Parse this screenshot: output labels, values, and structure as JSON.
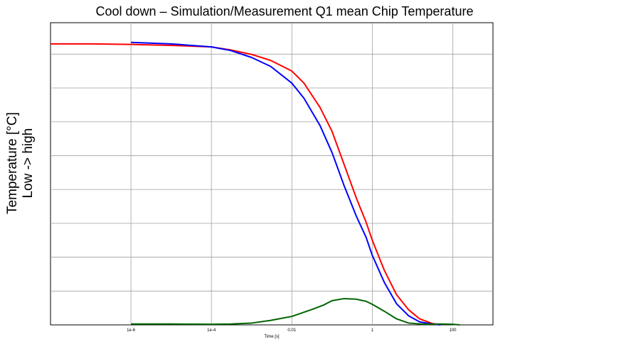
{
  "chart_data": {
    "type": "line",
    "title": "Cool down – Simulation/Measurement Q1 mean Chip Temperature",
    "xlabel": "Time [s]",
    "ylabel": [
      "Temperature [°C]",
      "Low -> high"
    ],
    "x_scale": "log",
    "xlim": [
      1e-08,
      1000
    ],
    "ylim": [
      0,
      1
    ],
    "x_ticks": [
      {
        "value": 1e-06,
        "label": "1e-6"
      },
      {
        "value": 0.0001,
        "label": "1e-4"
      },
      {
        "value": 0.01,
        "label": "0.01"
      },
      {
        "value": 1,
        "label": "1"
      },
      {
        "value": 100,
        "label": "100"
      }
    ],
    "y_gridlines": [
      0.112,
      0.224,
      0.336,
      0.448,
      0.56,
      0.672,
      0.784,
      0.896
    ],
    "y_tick_labels": "none",
    "grid": true,
    "legend": "none",
    "series": [
      {
        "color": "#ff0000",
        "x": [
          1e-08,
          1e-07,
          1e-06,
          1e-05,
          0.0001,
          0.0003,
          0.001,
          0.003,
          0.01,
          0.02,
          0.05,
          0.1,
          0.2,
          0.4,
          0.7,
          1,
          2,
          4,
          8,
          15,
          30,
          50
        ],
        "y": [
          0.93,
          0.93,
          0.928,
          0.925,
          0.92,
          0.91,
          0.895,
          0.875,
          0.84,
          0.8,
          0.72,
          0.64,
          0.53,
          0.42,
          0.34,
          0.28,
          0.18,
          0.1,
          0.05,
          0.02,
          0.005,
          0.0
        ]
      },
      {
        "color": "#0000ff",
        "x": [
          1e-06,
          1e-05,
          0.0001,
          0.0003,
          0.001,
          0.003,
          0.01,
          0.02,
          0.05,
          0.1,
          0.2,
          0.4,
          0.7,
          1,
          2,
          4,
          8,
          15,
          30,
          50
        ],
        "y": [
          0.935,
          0.93,
          0.92,
          0.908,
          0.885,
          0.855,
          0.8,
          0.75,
          0.66,
          0.57,
          0.46,
          0.36,
          0.29,
          0.23,
          0.14,
          0.07,
          0.03,
          0.01,
          0.003,
          0.0
        ]
      },
      {
        "color": "#006400",
        "x": [
          1e-06,
          1e-05,
          0.0001,
          0.0003,
          0.001,
          0.003,
          0.01,
          0.03,
          0.06,
          0.1,
          0.2,
          0.4,
          0.7,
          1,
          2,
          4,
          8,
          20,
          50,
          100,
          150
        ],
        "y": [
          0.003,
          0.003,
          0.002,
          0.003,
          0.006,
          0.015,
          0.028,
          0.05,
          0.065,
          0.08,
          0.087,
          0.085,
          0.078,
          0.068,
          0.045,
          0.02,
          0.006,
          0.002,
          0.003,
          0.002,
          0.0
        ]
      }
    ]
  }
}
